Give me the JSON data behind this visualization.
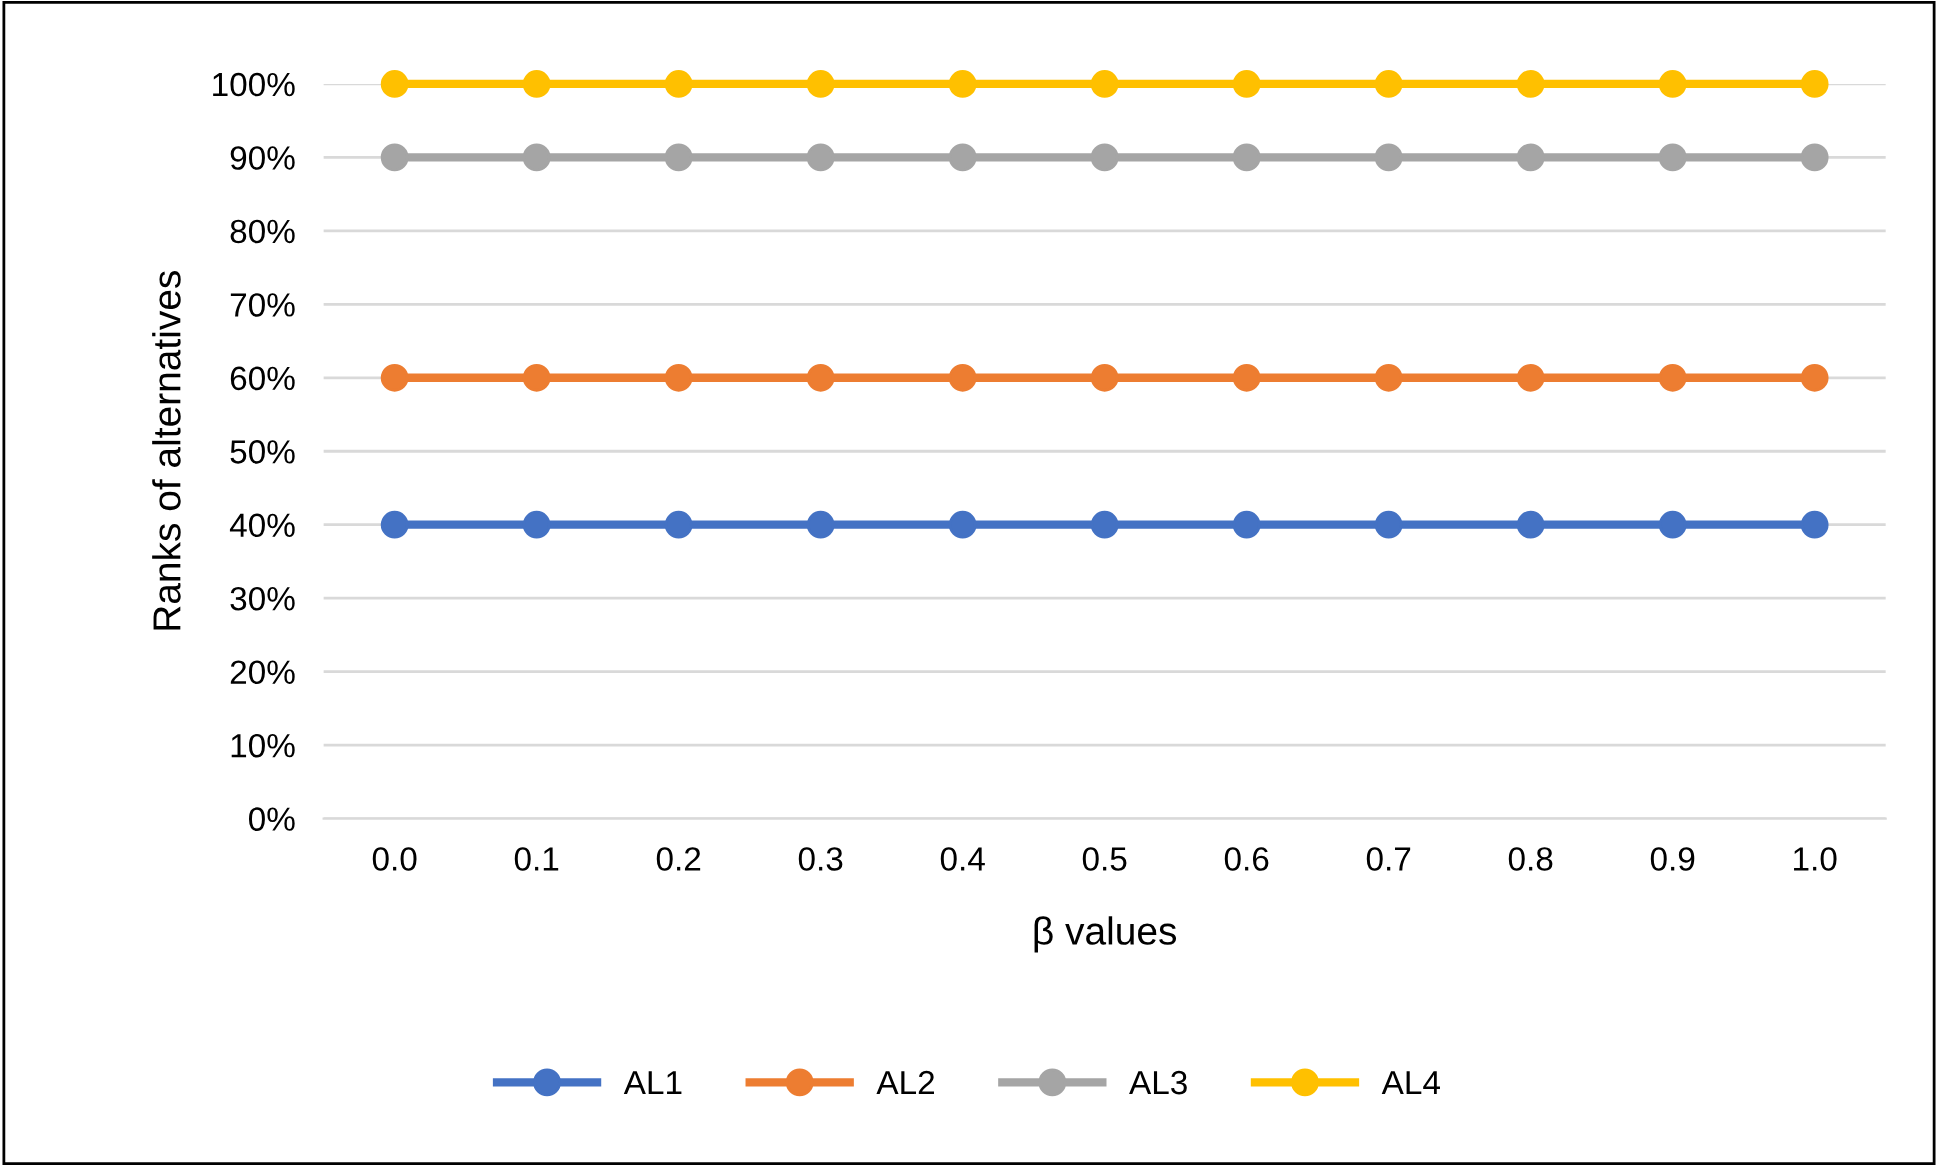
{
  "chart_data": {
    "type": "line",
    "xlabel": "β values",
    "ylabel": "Ranks of alternatives",
    "categories": [
      "0.0",
      "0.1",
      "0.2",
      "0.3",
      "0.4",
      "0.5",
      "0.6",
      "0.7",
      "0.8",
      "0.9",
      "1.0"
    ],
    "series": [
      {
        "name": "AL1",
        "color": "#4472c4",
        "values": [
          40,
          40,
          40,
          40,
          40,
          40,
          40,
          40,
          40,
          40,
          40
        ]
      },
      {
        "name": "AL2",
        "color": "#ed7d31",
        "values": [
          60,
          60,
          60,
          60,
          60,
          60,
          60,
          60,
          60,
          60,
          60
        ]
      },
      {
        "name": "AL3",
        "color": "#a5a5a5",
        "values": [
          90,
          90,
          90,
          90,
          90,
          90,
          90,
          90,
          90,
          90,
          90
        ]
      },
      {
        "name": "AL4",
        "color": "#ffc000",
        "values": [
          100,
          100,
          100,
          100,
          100,
          100,
          100,
          100,
          100,
          100,
          100
        ]
      }
    ],
    "ylim": [
      0,
      100
    ],
    "yticks": [
      {
        "value": 0,
        "label": "0%"
      },
      {
        "value": 10,
        "label": "10%"
      },
      {
        "value": 20,
        "label": "20%"
      },
      {
        "value": 30,
        "label": "30%"
      },
      {
        "value": 40,
        "label": "40%"
      },
      {
        "value": 50,
        "label": "50%"
      },
      {
        "value": 60,
        "label": "60%"
      },
      {
        "value": 70,
        "label": "70%"
      },
      {
        "value": 80,
        "label": "80%"
      },
      {
        "value": 90,
        "label": "90%"
      },
      {
        "value": 100,
        "label": "100%"
      }
    ],
    "grid": "y",
    "legend": "bottom",
    "marker": "circle",
    "line_style": "solid"
  }
}
